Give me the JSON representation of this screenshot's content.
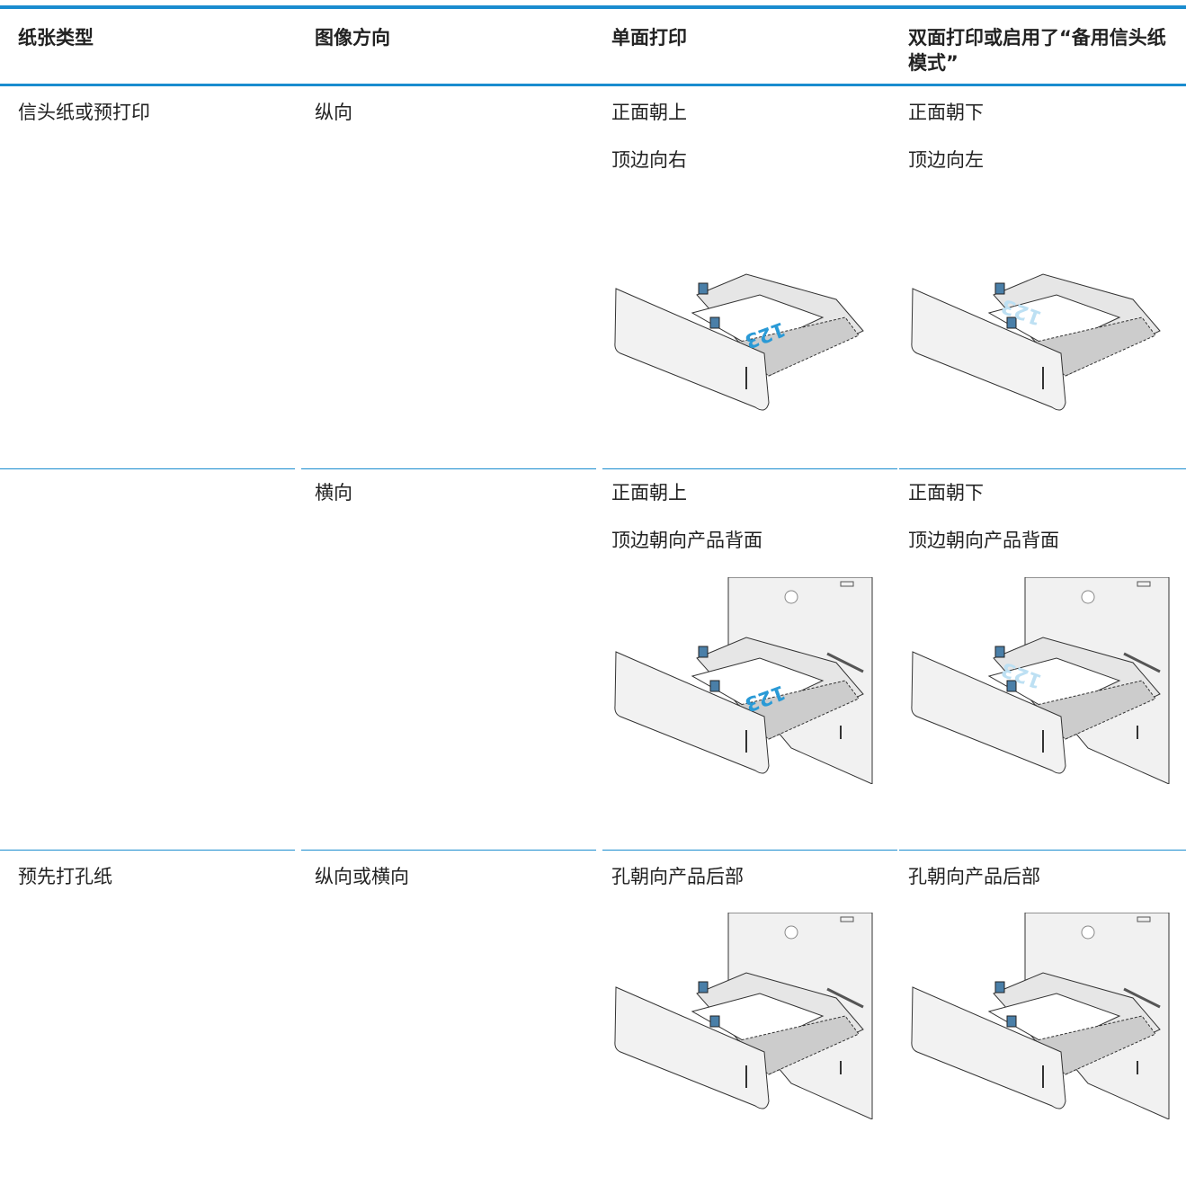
{
  "table": {
    "header": [
      "纸张类型",
      "图像方向",
      "单面打印",
      "双面打印或启用了“备用信头纸模式”"
    ],
    "rows": [
      [
        [
          "信头纸或预打印"
        ],
        [
          "纵向"
        ],
        [
          "正面朝上",
          "顶边向右"
        ],
        [
          "正面朝下",
          "顶边向左"
        ]
      ],
      [
        [],
        [
          "横向"
        ],
        [
          "正面朝上",
          "顶边朝向产品背面"
        ],
        [
          "正面朝下",
          "顶边朝向产品背面"
        ]
      ],
      [
        [
          "预先打孔纸"
        ],
        [
          "纵向或横向"
        ],
        [
          "孔朝向产品后部"
        ],
        [
          "孔朝向产品后部"
        ]
      ]
    ],
    "figure_label": "123"
  }
}
